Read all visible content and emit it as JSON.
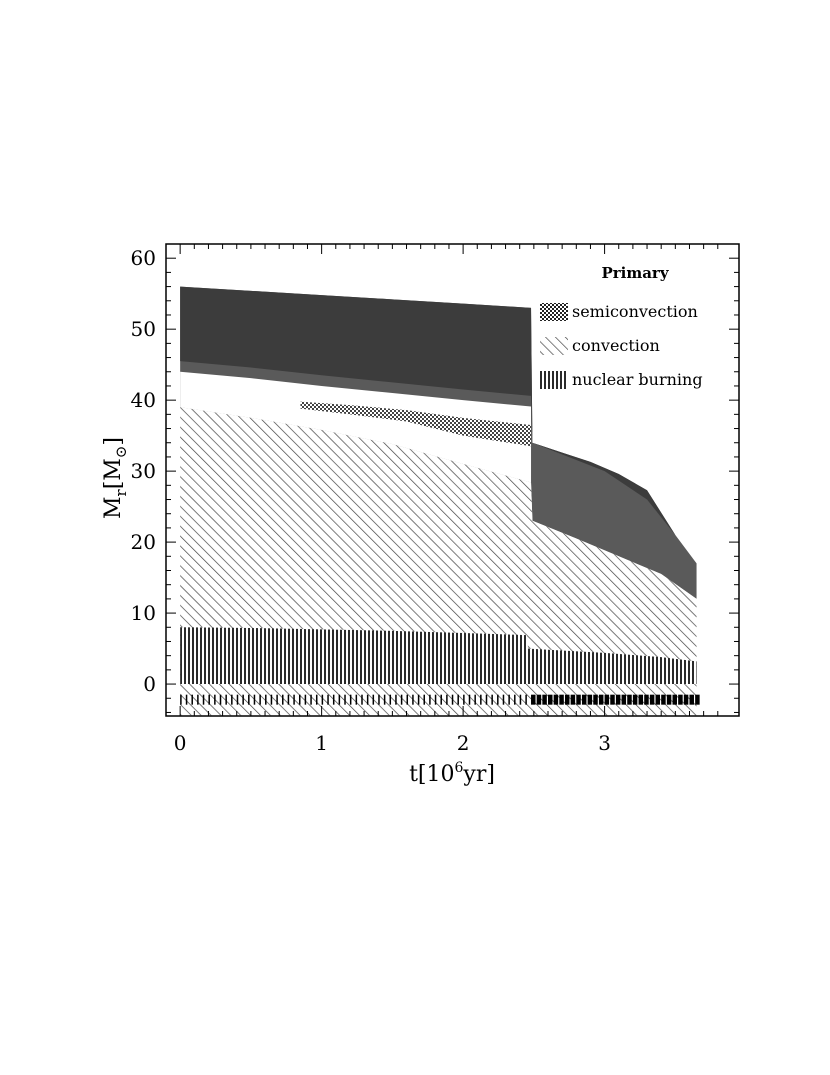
{
  "chart_data": {
    "type": "area",
    "title": "Primary",
    "xlabel_main": "t[10",
    "xlabel_sup": "6",
    "xlabel_end": "yr]",
    "ylabel_main": "M",
    "ylabel_sub": "r",
    "ylabel_end": "[M",
    "ylabel_sun": "⊙",
    "ylabel_close": "]",
    "xlim": [
      -0.1,
      3.95
    ],
    "ylim": [
      -4.5,
      62
    ],
    "xticks": [
      0,
      1,
      2,
      3
    ],
    "yticks": [
      0,
      10,
      20,
      30,
      40,
      50,
      60
    ],
    "legend_position": "top-right",
    "legend": [
      {
        "key": "semiconvection",
        "label": "semiconvection"
      },
      {
        "key": "convection",
        "label": "convection"
      },
      {
        "key": "nuclear",
        "label": "nuclear burning"
      }
    ],
    "regions": {
      "stellar_surface": {
        "x": [
          0,
          0.5,
          1.0,
          1.5,
          2.0,
          2.48,
          2.49,
          2.7,
          2.9,
          3.1,
          3.3,
          3.5,
          3.65
        ],
        "y": [
          56,
          55.4,
          54.8,
          54.2,
          53.6,
          53,
          34,
          32.6,
          31.3,
          29.6,
          27.3,
          21,
          17
        ]
      },
      "dark_envelope_bottom": {
        "x": [
          0,
          0.5,
          1.0,
          1.5,
          2.0,
          2.48,
          2.49,
          3.0,
          3.3,
          3.5,
          3.65
        ],
        "y": [
          45.5,
          44.6,
          43.5,
          42.5,
          41.5,
          40.6,
          34,
          30,
          26,
          21,
          17
        ]
      },
      "convective_core_top": {
        "x": [
          0,
          0.5,
          1.0,
          1.5,
          2.0,
          2.48,
          2.49,
          2.8,
          3.1,
          3.4,
          3.65
        ],
        "y": [
          39,
          37.5,
          35.8,
          33.8,
          31,
          28.4,
          23,
          20.5,
          18,
          15.5,
          12
        ]
      },
      "nuclear_core_top": {
        "x": [
          0,
          0.5,
          1.0,
          1.5,
          2.0,
          2.45,
          2.46,
          3.0,
          3.4,
          3.65
        ],
        "y": [
          8,
          7.9,
          7.7,
          7.5,
          7.2,
          6.9,
          5,
          4.4,
          3.8,
          3.2
        ]
      },
      "semiconvective_band": {
        "x": [
          0.85,
          1.2,
          1.6,
          2.0,
          2.48
        ],
        "y_top": [
          39.8,
          39.3,
          38.6,
          37.5,
          36.5
        ],
        "y_bottom": [
          38.8,
          38.0,
          37.0,
          35.0,
          33.5
        ]
      }
    },
    "nuclear_burning_strip": {
      "y": -2.2,
      "x_start": 0,
      "x_end": 3.65,
      "dense_from": 2.45
    }
  }
}
